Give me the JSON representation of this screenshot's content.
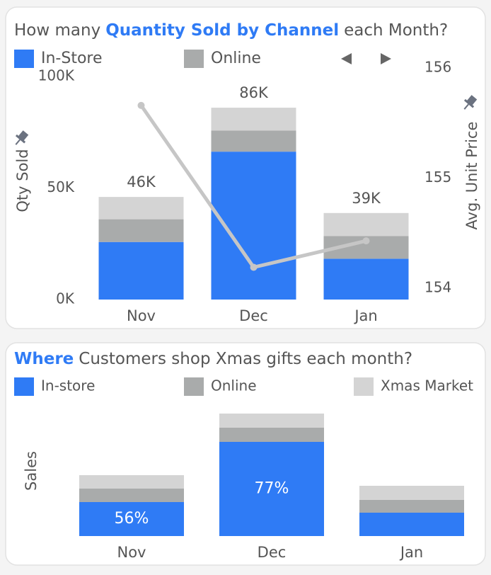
{
  "chart_data": [
    {
      "type": "bar",
      "stacked": true,
      "title_parts": [
        "How many",
        "Quantity Sold by Channel",
        "each Month?"
      ],
      "title_colors": [
        "#555555",
        "#2f7bf5",
        "#555555"
      ],
      "y_label": "Qty Sold",
      "y2_label": "Avg. Unit Price",
      "categories": [
        "Nov",
        "Dec",
        "Jan"
      ],
      "series": [
        {
          "name": "In-Store",
          "color": "#2f7bf5",
          "values": [
            25800,
            66300,
            18300
          ]
        },
        {
          "name": "Online",
          "color": "#a9abab",
          "values": [
            10200,
            9500,
            10200
          ]
        },
        {
          "name": null,
          "color": "#d4d4d4",
          "values": [
            10000,
            10200,
            10300
          ]
        },
        {
          "name": null,
          "type": "line",
          "axis": "y2",
          "color": "#c6c6c6",
          "values": [
            155.66,
            154.19,
            154.43
          ]
        }
      ],
      "totals": {
        "values": [
          46000,
          86000,
          38800
        ],
        "value_labels": [
          "46K",
          "86K",
          "39K"
        ]
      },
      "ylim": [
        0,
        100000
      ],
      "yticks": [
        {
          "value": 0,
          "label": "0K"
        },
        {
          "value": 50000,
          "label": "50K"
        },
        {
          "value": 100000,
          "label": "100K"
        }
      ],
      "y2lim": [
        154,
        156
      ],
      "y2ticks": [
        154,
        155,
        156
      ]
    },
    {
      "type": "bar",
      "stacked": true,
      "title_parts": [
        "Where",
        "Customers shop Xmas gifts each month?"
      ],
      "title_colors": [
        "#2f7bf5",
        "#555555"
      ],
      "y_label": "Sales",
      "categories": [
        "Nov",
        "Dec",
        "Jan"
      ],
      "series": [
        {
          "name": "In-store",
          "color": "#2f7bf5",
          "values": [
            48,
            133,
            33
          ],
          "value_labels": [
            "56%",
            "77%",
            null
          ]
        },
        {
          "name": "Online",
          "color": "#a9abab",
          "values": [
            19,
            20,
            18
          ]
        },
        {
          "name": "Xmas Market",
          "color": "#d4d4d4",
          "values": [
            19,
            20,
            20
          ]
        }
      ],
      "ylim": [
        0,
        180
      ]
    }
  ]
}
